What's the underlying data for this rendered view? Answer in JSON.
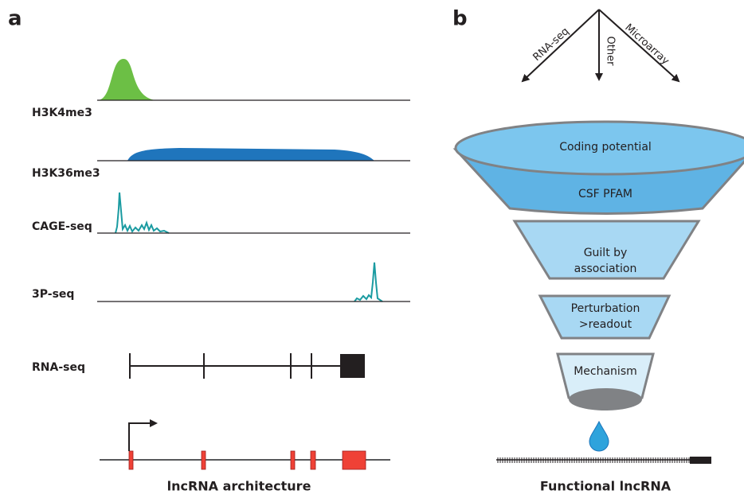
{
  "panel_a": {
    "label": "a",
    "tracks": [
      "H3K4me3",
      "H3K36me3",
      "CAGE-seq",
      "3P-seq",
      "RNA-seq"
    ],
    "caption": "lncRNA architecture"
  },
  "panel_b": {
    "label": "b",
    "sources": [
      "RNA-seq",
      "Other",
      "Microarray"
    ],
    "funnel": {
      "top": "Coding potential",
      "rim": "CSF PFAM"
    },
    "stages": [
      [
        "Guilt by",
        "association"
      ],
      [
        "Perturbation",
        ">readout"
      ],
      [
        "Mechanism"
      ]
    ],
    "caption": "Functional lncRNA"
  }
}
